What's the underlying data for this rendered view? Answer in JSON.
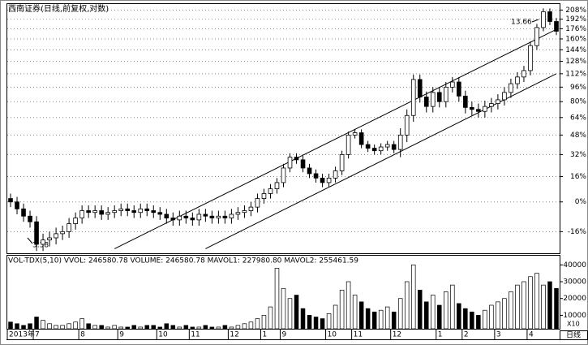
{
  "chart_data": {
    "type": "candlestick",
    "title": "西南证券(日线,前复权,对数)",
    "categories": [
      "2013年",
      null,
      null,
      null,
      "7",
      null,
      null,
      null,
      null,
      null,
      null,
      "8",
      null,
      null,
      null,
      null,
      null,
      "9",
      null,
      null,
      null,
      null,
      null,
      "10",
      null,
      null,
      null,
      null,
      "11",
      null,
      null,
      null,
      null,
      null,
      "12",
      null,
      null,
      null,
      null,
      "1",
      null,
      null,
      "9",
      null,
      null,
      null,
      null,
      null,
      null,
      "10",
      null,
      null,
      null,
      "11",
      null,
      null,
      null,
      null,
      null,
      "12",
      null,
      null,
      null,
      null,
      null,
      null,
      "1",
      null,
      null,
      null,
      "2",
      null,
      null,
      null,
      null,
      "3",
      null,
      null,
      null,
      null,
      "4",
      null,
      null,
      null,
      null
    ],
    "open": [
      2,
      0,
      -4,
      -8,
      -11,
      -22,
      -20,
      -19,
      -17,
      -16,
      -12,
      -9,
      -5,
      -6,
      -5,
      -7,
      -6,
      -5,
      -4,
      -5,
      -6,
      -4,
      -5,
      -6,
      -7,
      -9,
      -10,
      -8,
      -9,
      -10,
      -7,
      -8,
      -9,
      -8,
      -9,
      -7,
      -6,
      -5,
      -3,
      2,
      5,
      8,
      12,
      22,
      30,
      28,
      22,
      18,
      15,
      12,
      15,
      20,
      32,
      48,
      50,
      40,
      37,
      35,
      38,
      40,
      36,
      48,
      66,
      105,
      85,
      75,
      90,
      80,
      96,
      102,
      86,
      74,
      72,
      70,
      75,
      78,
      82,
      90,
      100,
      108,
      116,
      150,
      178,
      205,
      188
    ],
    "high": [
      5,
      3,
      -1,
      -5,
      -8,
      -17,
      -16,
      -14,
      -13,
      -9,
      -6,
      -2,
      -2,
      -2,
      -2,
      -3,
      -2,
      -1,
      -1,
      -2,
      -1,
      -1,
      -2,
      -3,
      -4,
      -6,
      -5,
      -5,
      -6,
      -4,
      -4,
      -5,
      -5,
      -5,
      -4,
      -3,
      -2,
      0,
      5,
      8,
      11,
      15,
      25,
      33,
      33,
      31,
      25,
      21,
      18,
      18,
      23,
      35,
      51,
      53,
      53,
      43,
      40,
      41,
      43,
      43,
      54,
      72,
      111,
      111,
      91,
      96,
      96,
      102,
      108,
      108,
      92,
      80,
      78,
      81,
      84,
      88,
      96,
      106,
      114,
      122,
      156,
      184,
      211,
      211,
      194
    ],
    "low": [
      -3,
      -7,
      -11,
      -14,
      -25,
      -25,
      -23,
      -22,
      -20,
      -19,
      -15,
      -12,
      -9,
      -9,
      -10,
      -10,
      -9,
      -8,
      -8,
      -9,
      -9,
      -8,
      -9,
      -10,
      -12,
      -13,
      -13,
      -12,
      -13,
      -13,
      -11,
      -12,
      -12,
      -12,
      -12,
      -10,
      -9,
      -8,
      -6,
      -1,
      2,
      5,
      9,
      19,
      25,
      19,
      15,
      12,
      9,
      9,
      12,
      17,
      29,
      45,
      37,
      34,
      32,
      32,
      35,
      33,
      30,
      42,
      60,
      79,
      69,
      69,
      74,
      74,
      90,
      80,
      68,
      66,
      64,
      64,
      69,
      72,
      76,
      84,
      94,
      102,
      110,
      144,
      172,
      182,
      166
    ],
    "close": [
      0,
      -4,
      -8,
      -11,
      -22,
      -20,
      -19,
      -17,
      -16,
      -12,
      -9,
      -5,
      -6,
      -5,
      -7,
      -6,
      -5,
      -4,
      -5,
      -6,
      -4,
      -5,
      -6,
      -7,
      -9,
      -10,
      -8,
      -9,
      -10,
      -7,
      -8,
      -9,
      -8,
      -9,
      -7,
      -6,
      -5,
      -3,
      2,
      5,
      8,
      12,
      22,
      30,
      28,
      22,
      18,
      15,
      12,
      15,
      20,
      32,
      48,
      50,
      40,
      37,
      35,
      38,
      40,
      36,
      48,
      66,
      105,
      85,
      75,
      90,
      80,
      96,
      102,
      86,
      74,
      72,
      70,
      75,
      78,
      82,
      90,
      100,
      108,
      116,
      150,
      178,
      205,
      188,
      172
    ],
    "color": "#000000",
    "log_scale": true,
    "grid": true,
    "ylim": [
      -26,
      219
    ],
    "yticks": [
      {
        "value": 208,
        "label": "208%"
      },
      {
        "value": 192,
        "label": "192%"
      },
      {
        "value": 176,
        "label": "176%"
      },
      {
        "value": 160,
        "label": "160%"
      },
      {
        "value": 144,
        "label": "144%"
      },
      {
        "value": 128,
        "label": "128%"
      },
      {
        "value": 112,
        "label": "112%"
      },
      {
        "value": 96,
        "label": "96%"
      },
      {
        "value": 80,
        "label": "80%"
      },
      {
        "value": 64,
        "label": "64%"
      },
      {
        "value": 48,
        "label": "48%"
      },
      {
        "value": 32,
        "label": "32%"
      },
      {
        "value": 16,
        "label": "16%"
      },
      {
        "value": 0,
        "label": "0%"
      },
      {
        "value": -16,
        "label": "-16%"
      }
    ],
    "trend_lines": [
      {
        "from": [
          16,
          -24
        ],
        "to": [
          84,
          175
        ]
      },
      {
        "from": [
          30,
          -24
        ],
        "to": [
          84,
          112
        ]
      }
    ],
    "annotations": [
      {
        "text": "3.38"
      },
      {
        "text": "13.66"
      }
    ],
    "period_label": "日线",
    "volume": {
      "type": "bar",
      "legend": "VOL-TDX(5,10)  VVOL: 246580.78  VOLUME: 246580.78  MAVOL1: 227980.80  MAVOL2: 255461.59",
      "unit_label": "X10",
      "values": [
        6000,
        5000,
        4000,
        5000,
        9000,
        7000,
        5000,
        4000,
        4000,
        5000,
        6000,
        8000,
        5000,
        4000,
        4000,
        3000,
        4000,
        3000,
        3000,
        4000,
        3000,
        4000,
        4000,
        3000,
        5000,
        4000,
        3000,
        4000,
        3000,
        3000,
        4000,
        3000,
        3000,
        4000,
        3000,
        4000,
        5000,
        6000,
        8000,
        10000,
        15000,
        38000,
        26000,
        20000,
        22000,
        14000,
        10000,
        9000,
        8000,
        11000,
        16000,
        25000,
        30000,
        22000,
        18000,
        14000,
        12000,
        13000,
        15000,
        12000,
        20000,
        30000,
        40000,
        25000,
        18000,
        22000,
        16000,
        24000,
        28000,
        17000,
        14000,
        12000,
        10000,
        13000,
        16000,
        18000,
        20000,
        24000,
        28000,
        30000,
        33000,
        35000,
        28000,
        30000,
        26000
      ],
      "ylim": [
        2000,
        44000
      ],
      "yticks": [
        10000,
        20000,
        30000,
        40000
      ]
    }
  }
}
